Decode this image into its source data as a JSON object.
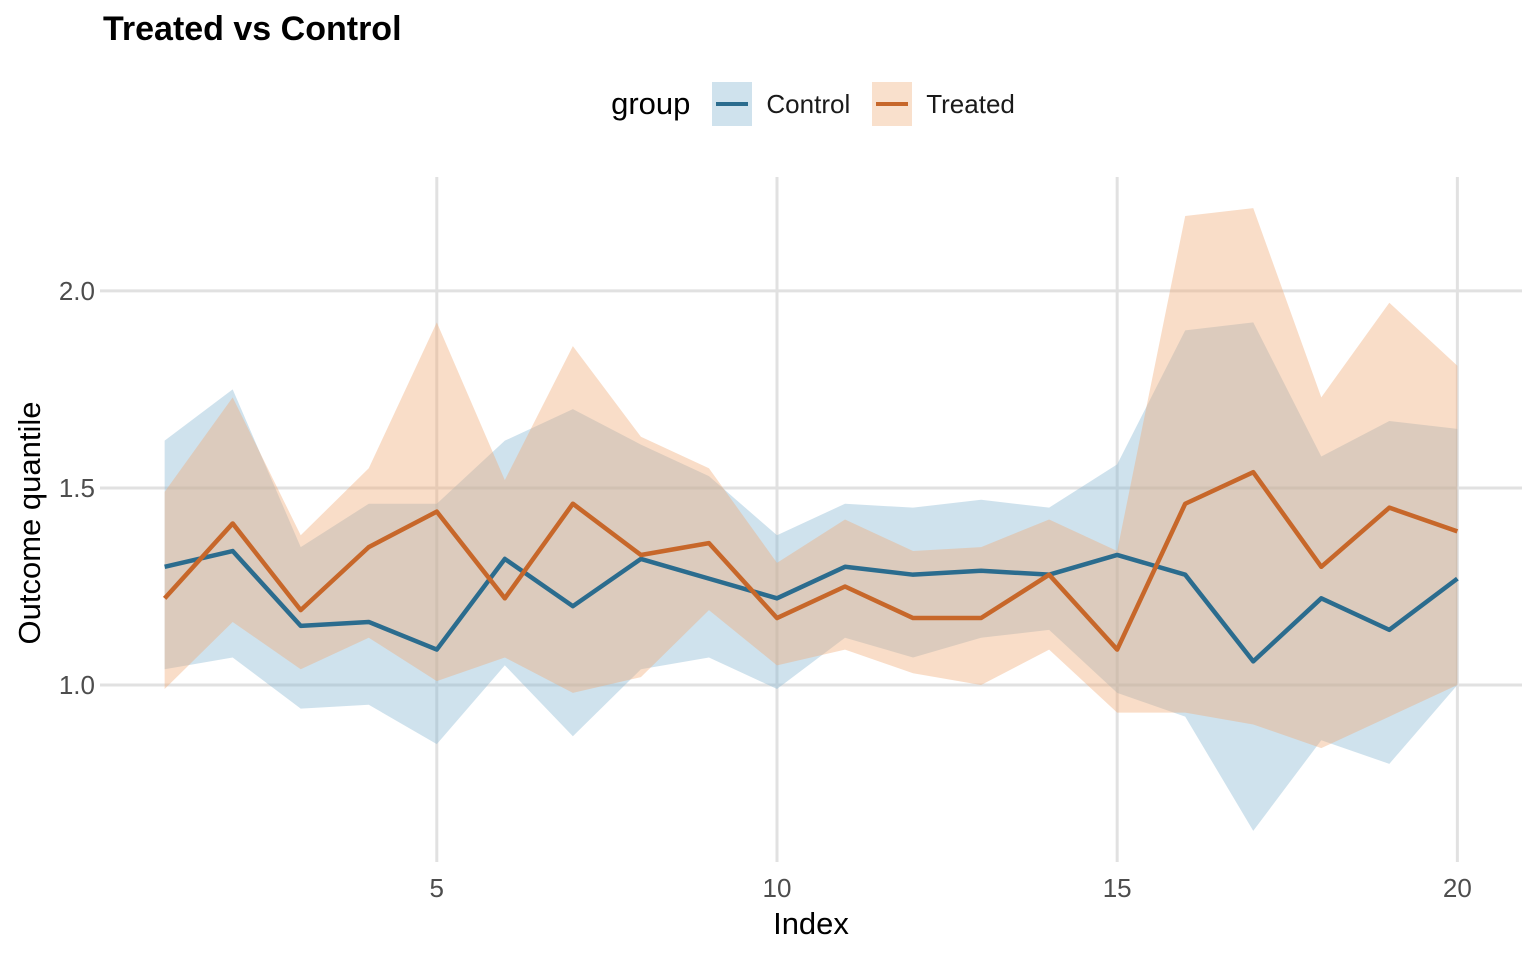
{
  "title": "Treated vs Control",
  "legend": {
    "title": "group",
    "items": [
      {
        "label": "Control",
        "line_color": "#2B6C8E",
        "swatch_fill": "#CFE2ED"
      },
      {
        "label": "Treated",
        "line_color": "#C7672A",
        "swatch_fill": "#F9E0CC"
      }
    ]
  },
  "chart_data": {
    "type": "line",
    "title": "Treated vs Control",
    "xlabel": "Index",
    "ylabel": "Outcome quantile",
    "legend_title": "group",
    "legend_position": "top",
    "grid": true,
    "grid_color": "#E1E1E1",
    "tick_label_color": "#4D4D4D",
    "x": [
      1,
      2,
      3,
      4,
      5,
      6,
      7,
      8,
      9,
      10,
      11,
      12,
      13,
      14,
      15,
      16,
      17,
      18,
      19,
      20
    ],
    "x_ticks": [
      5,
      10,
      15,
      20
    ],
    "y_tick_values": [
      1.0,
      1.5,
      2.0
    ],
    "y_tick_labels": [
      "1.0",
      "1.5",
      "2.0"
    ],
    "xlim": [
      0.05,
      20.95
    ],
    "ylim": [
      0.551,
      2.289
    ],
    "series": [
      {
        "name": "Control",
        "color": "#2B6C8E",
        "fill": "rgba(141,186,213,0.42)",
        "values": [
          1.3,
          1.34,
          1.15,
          1.16,
          1.09,
          1.32,
          1.2,
          1.32,
          1.27,
          1.22,
          1.3,
          1.28,
          1.29,
          1.28,
          1.33,
          1.28,
          1.06,
          1.22,
          1.14,
          1.27
        ],
        "lower": [
          1.04,
          1.07,
          0.94,
          0.95,
          0.85,
          1.05,
          0.87,
          1.04,
          1.07,
          0.99,
          1.12,
          1.07,
          1.12,
          1.14,
          0.98,
          0.92,
          0.63,
          0.86,
          0.8,
          1.0
        ],
        "upper": [
          1.62,
          1.75,
          1.35,
          1.46,
          1.46,
          1.62,
          1.7,
          1.61,
          1.53,
          1.38,
          1.46,
          1.45,
          1.47,
          1.45,
          1.56,
          1.9,
          1.92,
          1.58,
          1.67,
          1.65
        ]
      },
      {
        "name": "Treated",
        "color": "#C7672A",
        "fill": "rgba(240,170,118,0.40)",
        "values": [
          1.22,
          1.41,
          1.19,
          1.35,
          1.44,
          1.22,
          1.46,
          1.33,
          1.36,
          1.17,
          1.25,
          1.17,
          1.17,
          1.28,
          1.09,
          1.46,
          1.54,
          1.3,
          1.45,
          1.39
        ],
        "lower": [
          0.99,
          1.16,
          1.04,
          1.12,
          1.01,
          1.07,
          0.98,
          1.02,
          1.19,
          1.05,
          1.09,
          1.03,
          1.0,
          1.09,
          0.93,
          0.93,
          0.9,
          0.84,
          0.92,
          1.0
        ],
        "upper": [
          1.49,
          1.73,
          1.38,
          1.55,
          1.92,
          1.52,
          1.86,
          1.63,
          1.55,
          1.31,
          1.42,
          1.34,
          1.35,
          1.42,
          1.34,
          2.19,
          2.21,
          1.73,
          1.97,
          1.81
        ]
      }
    ]
  }
}
